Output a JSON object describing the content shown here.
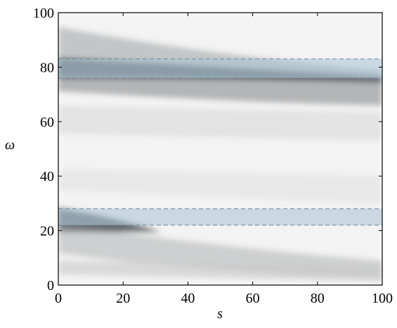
{
  "chart_data": {
    "type": "heatmap",
    "xlabel": "s",
    "ylabel": "ω",
    "xlim": [
      0,
      100
    ],
    "ylim": [
      0,
      100
    ],
    "xticks": [
      0,
      20,
      40,
      60,
      80,
      100
    ],
    "yticks": [
      0,
      20,
      40,
      60,
      80,
      100
    ],
    "bands": [
      {
        "ylim": [
          76,
          83
        ]
      },
      {
        "ylim": [
          22,
          28
        ]
      }
    ],
    "band_color": "#aec6d6"
  }
}
